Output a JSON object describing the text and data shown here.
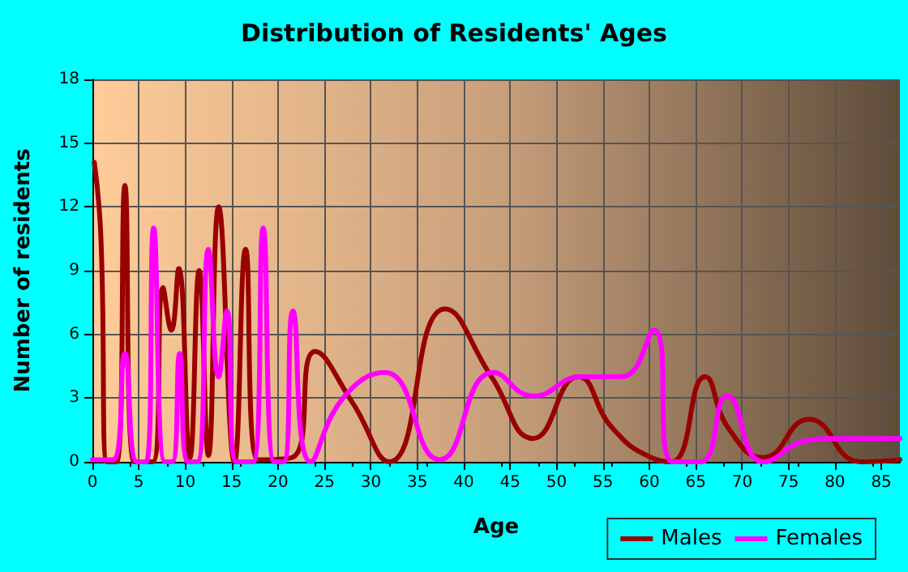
{
  "chart_data": {
    "type": "line",
    "title": "Distribution of Residents' Ages",
    "xlabel": "Age",
    "ylabel": "Number of residents",
    "xlim": [
      0,
      87
    ],
    "xticks": [
      0,
      5,
      10,
      15,
      20,
      25,
      30,
      35,
      40,
      45,
      50,
      55,
      60,
      65,
      70,
      75,
      80,
      85
    ],
    "ylim": [
      0,
      18
    ],
    "yticks": [
      0,
      3,
      6,
      9,
      12,
      15,
      18
    ],
    "grid": true,
    "legend": "bottom right",
    "marker": "none",
    "line_style": "solid",
    "series": [
      {
        "name": "Males",
        "color": "#990000",
        "x": [
          0.2,
          0.9,
          1.6,
          2.6,
          3.5,
          4.5,
          6.5,
          7.6,
          8.5,
          9.3,
          10.5,
          11.5,
          12.5,
          13.6,
          15.3,
          16.5,
          17.8,
          21.5,
          24,
          28,
          32,
          38,
          43,
          47.5,
          52.3,
          56,
          60.2,
          62.4,
          66,
          68.5,
          72.3,
          77.2,
          82.8,
          87
        ],
        "values": [
          14.1,
          10.7,
          0,
          0,
          13,
          0,
          0,
          8.2,
          6.2,
          9.1,
          0.2,
          9,
          0.3,
          12,
          0,
          10,
          0.1,
          0.2,
          5.2,
          2.8,
          0,
          7.2,
          4,
          1.1,
          4,
          1.6,
          0.2,
          0,
          4,
          1.6,
          0.2,
          2,
          0,
          0.1
        ]
      },
      {
        "name": "Females",
        "color": "#ff00ff",
        "x": [
          0,
          2.2,
          3.5,
          4.8,
          5.8,
          6.6,
          7.8,
          8.6,
          9.4,
          10.3,
          11.3,
          12.5,
          13.6,
          14.5,
          15.5,
          17.3,
          18.4,
          19.6,
          20.6,
          21.6,
          23.5,
          27,
          31.5,
          37.4,
          43.2,
          47.5,
          52.7,
          57,
          60.5,
          62.5,
          65.5,
          68.4,
          72.3,
          77,
          80,
          87
        ],
        "values": [
          0.1,
          0.1,
          5.1,
          0,
          0,
          11,
          0,
          0,
          5.1,
          0,
          0,
          10,
          4,
          7.1,
          0,
          0,
          11,
          0,
          0,
          7.1,
          0,
          3,
          4.2,
          0.1,
          4.2,
          3.1,
          4,
          4,
          6.2,
          0,
          0,
          3.1,
          0,
          1,
          1.1,
          1.1
        ]
      }
    ]
  }
}
